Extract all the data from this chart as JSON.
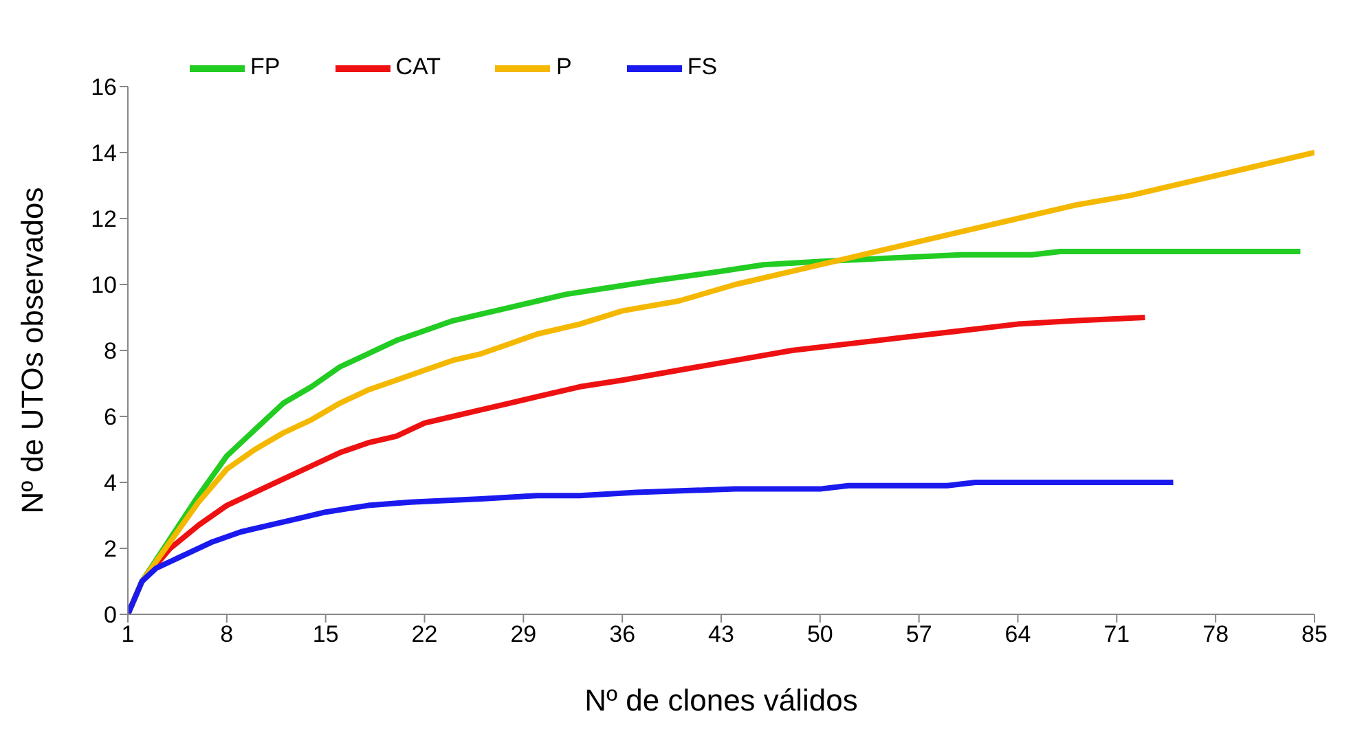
{
  "chart_data": {
    "type": "line",
    "xlabel": "Nº de clones válidos",
    "ylabel": "Nº de UTOs  observados",
    "xlim": [
      1,
      85
    ],
    "xticks": [
      1,
      8,
      15,
      22,
      29,
      36,
      43,
      50,
      57,
      64,
      71,
      78,
      85
    ],
    "ylim": [
      0,
      16
    ],
    "yticks": [
      0,
      2,
      4,
      6,
      8,
      10,
      12,
      14,
      16
    ],
    "grid": false,
    "legend": "top left",
    "marker": "none",
    "line_style": "solid",
    "series": [
      {
        "name": "FP",
        "color": "#22cc22",
        "x": [
          1,
          2,
          4,
          6,
          8,
          10,
          12,
          14,
          16,
          18,
          20,
          22,
          24,
          26,
          28,
          30,
          32,
          35,
          38,
          43,
          46,
          50,
          55,
          60,
          65,
          67,
          84
        ],
        "values": [
          0,
          1,
          2.3,
          3.6,
          4.8,
          5.6,
          6.4,
          6.9,
          7.5,
          7.9,
          8.3,
          8.6,
          8.9,
          9.1,
          9.3,
          9.5,
          9.7,
          9.9,
          10.1,
          10.4,
          10.6,
          10.7,
          10.8,
          10.9,
          10.9,
          11,
          11
        ]
      },
      {
        "name": "CAT",
        "color": "#ee1111",
        "x": [
          1,
          2,
          4,
          6,
          8,
          10,
          12,
          14,
          16,
          18,
          20,
          22,
          24,
          26,
          28,
          30,
          33,
          36,
          40,
          44,
          48,
          52,
          56,
          60,
          64,
          68,
          73
        ],
        "values": [
          0,
          1,
          2,
          2.7,
          3.3,
          3.7,
          4.1,
          4.5,
          4.9,
          5.2,
          5.4,
          5.8,
          6,
          6.2,
          6.4,
          6.6,
          6.9,
          7.1,
          7.4,
          7.7,
          8,
          8.2,
          8.4,
          8.6,
          8.8,
          8.9,
          9
        ]
      },
      {
        "name": "P",
        "color": "#f5b800",
        "x": [
          1,
          2,
          4,
          6,
          8,
          10,
          12,
          14,
          16,
          18,
          20,
          22,
          24,
          26,
          28,
          30,
          33,
          36,
          40,
          44,
          48,
          52,
          56,
          60,
          64,
          68,
          72,
          76,
          80,
          85
        ],
        "values": [
          0,
          1,
          2.2,
          3.4,
          4.4,
          5,
          5.5,
          5.9,
          6.4,
          6.8,
          7.1,
          7.4,
          7.7,
          7.9,
          8.2,
          8.5,
          8.8,
          9.2,
          9.5,
          10,
          10.4,
          10.8,
          11.2,
          11.6,
          12,
          12.4,
          12.7,
          13.1,
          13.5,
          14
        ]
      },
      {
        "name": "FS",
        "color": "#1a1aee",
        "x": [
          1,
          2,
          3,
          5,
          7,
          9,
          11,
          13,
          15,
          18,
          21,
          26,
          30,
          33,
          37,
          44,
          50,
          52,
          59,
          61,
          75
        ],
        "values": [
          0,
          1,
          1.4,
          1.8,
          2.2,
          2.5,
          2.7,
          2.9,
          3.1,
          3.3,
          3.4,
          3.5,
          3.6,
          3.6,
          3.7,
          3.8,
          3.8,
          3.9,
          3.9,
          4,
          4
        ]
      }
    ]
  }
}
